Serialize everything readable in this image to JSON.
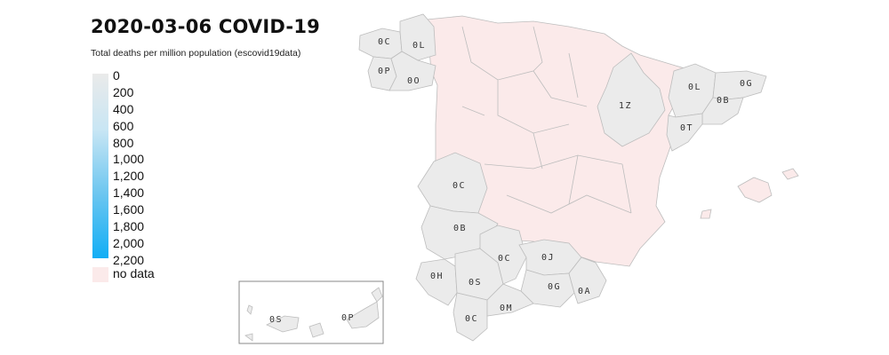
{
  "title": "2020-03-06 COVID-19",
  "subtitle": "Total deaths per million population (escovid19data)",
  "legend": {
    "ticks": [
      "0",
      "200",
      "400",
      "600",
      "800",
      "1,000",
      "1,200",
      "1,400",
      "1,600",
      "1,800",
      "2,000",
      "2,200"
    ],
    "no_data_label": "no data",
    "color_low": "#eaeaea",
    "color_high": "#12aef5",
    "no_data_color": "#fbeaea"
  },
  "provinces": [
    {
      "id": "a-coruna",
      "label": "0C"
    },
    {
      "id": "lugo",
      "label": "0L"
    },
    {
      "id": "pontevedra",
      "label": "0P"
    },
    {
      "id": "ourense",
      "label": "0O"
    },
    {
      "id": "zaragoza",
      "label": "1Z"
    },
    {
      "id": "lleida",
      "label": "0L"
    },
    {
      "id": "girona",
      "label": "0G"
    },
    {
      "id": "barcelona",
      "label": "0B"
    },
    {
      "id": "tarragona",
      "label": "0T"
    },
    {
      "id": "caceres",
      "label": "0C"
    },
    {
      "id": "badajoz",
      "label": "0B"
    },
    {
      "id": "huelva",
      "label": "0H"
    },
    {
      "id": "sevilla",
      "label": "0S"
    },
    {
      "id": "cordoba",
      "label": "0C"
    },
    {
      "id": "jaen",
      "label": "0J"
    },
    {
      "id": "granada",
      "label": "0G"
    },
    {
      "id": "almeria",
      "label": "0A"
    },
    {
      "id": "cadiz",
      "label": "0C"
    },
    {
      "id": "malaga",
      "label": "0M"
    },
    {
      "id": "santa-cruz-de-tenerife",
      "label": "0S"
    },
    {
      "id": "las-palmas",
      "label": "0P"
    }
  ]
}
